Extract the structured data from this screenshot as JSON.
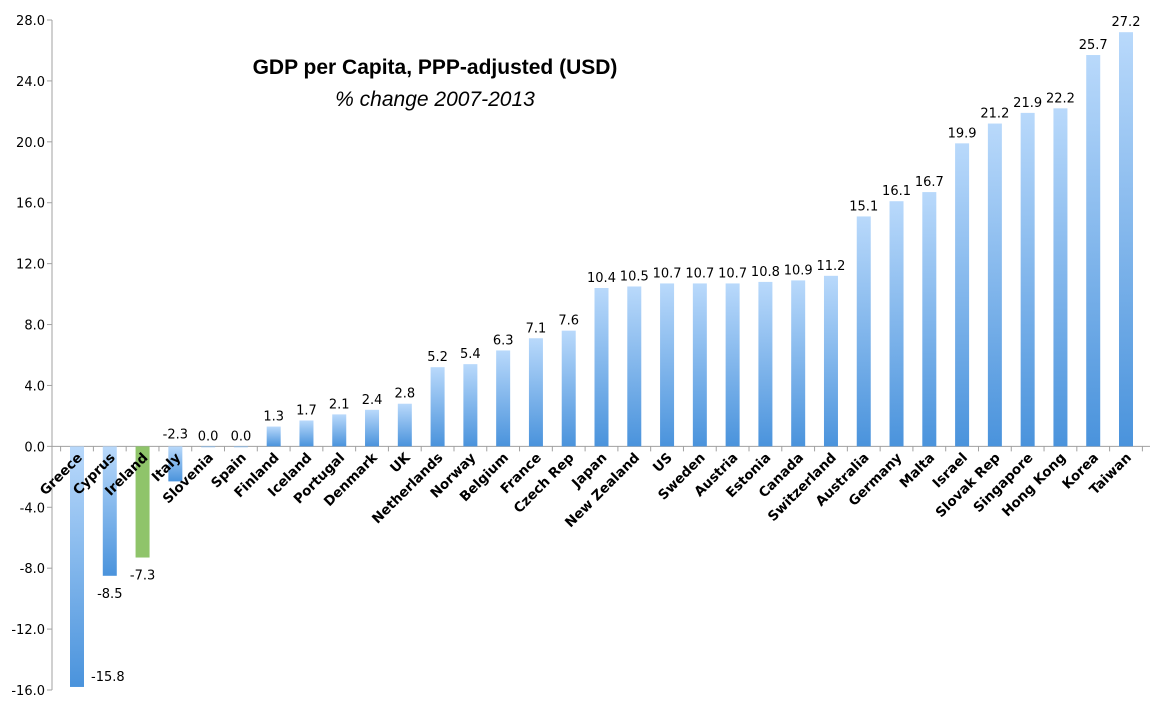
{
  "chart_data": {
    "type": "bar",
    "title": "GDP per Capita, PPP-adjusted (USD)",
    "subtitle": "% change 2007-2013",
    "xlabel": "",
    "ylabel": "",
    "ylim": [
      -16,
      28
    ],
    "yticks": [
      -16,
      -12,
      -8,
      -4,
      0,
      4,
      8,
      12,
      16,
      20,
      24,
      28
    ],
    "grid": false,
    "legend": "none",
    "categories": [
      "Greece",
      "Cyprus",
      "Ireland",
      "Italy",
      "Slovenia",
      "Spain",
      "Finland",
      "Iceland",
      "Portugal",
      "Denmark",
      "UK",
      "Netherlands",
      "Norway",
      "Belgium",
      "France",
      "Czech Rep",
      "Japan",
      "New Zealand",
      "US",
      "Sweden",
      "Austria",
      "Estonia",
      "Canada",
      "Switzerland",
      "Australia",
      "Germany",
      "Malta",
      "Israel",
      "Slovak Rep",
      "Singapore",
      "Hong Kong",
      "Korea",
      "Taiwan"
    ],
    "values": [
      -15.8,
      -8.5,
      -7.3,
      -2.3,
      0.0,
      0.0,
      1.3,
      1.7,
      2.1,
      2.4,
      2.8,
      5.2,
      5.4,
      6.3,
      7.1,
      7.6,
      10.4,
      10.5,
      10.7,
      10.7,
      10.7,
      10.8,
      10.9,
      11.2,
      15.1,
      16.1,
      16.7,
      19.9,
      21.2,
      21.9,
      22.2,
      25.7,
      27.2
    ],
    "highlight": "Ireland",
    "colors": {
      "bar_top": "#b9d9fb",
      "bar_bottom": "#4a93dc",
      "highlight": "#8fc46a",
      "axis": "#a0a0a0"
    }
  }
}
